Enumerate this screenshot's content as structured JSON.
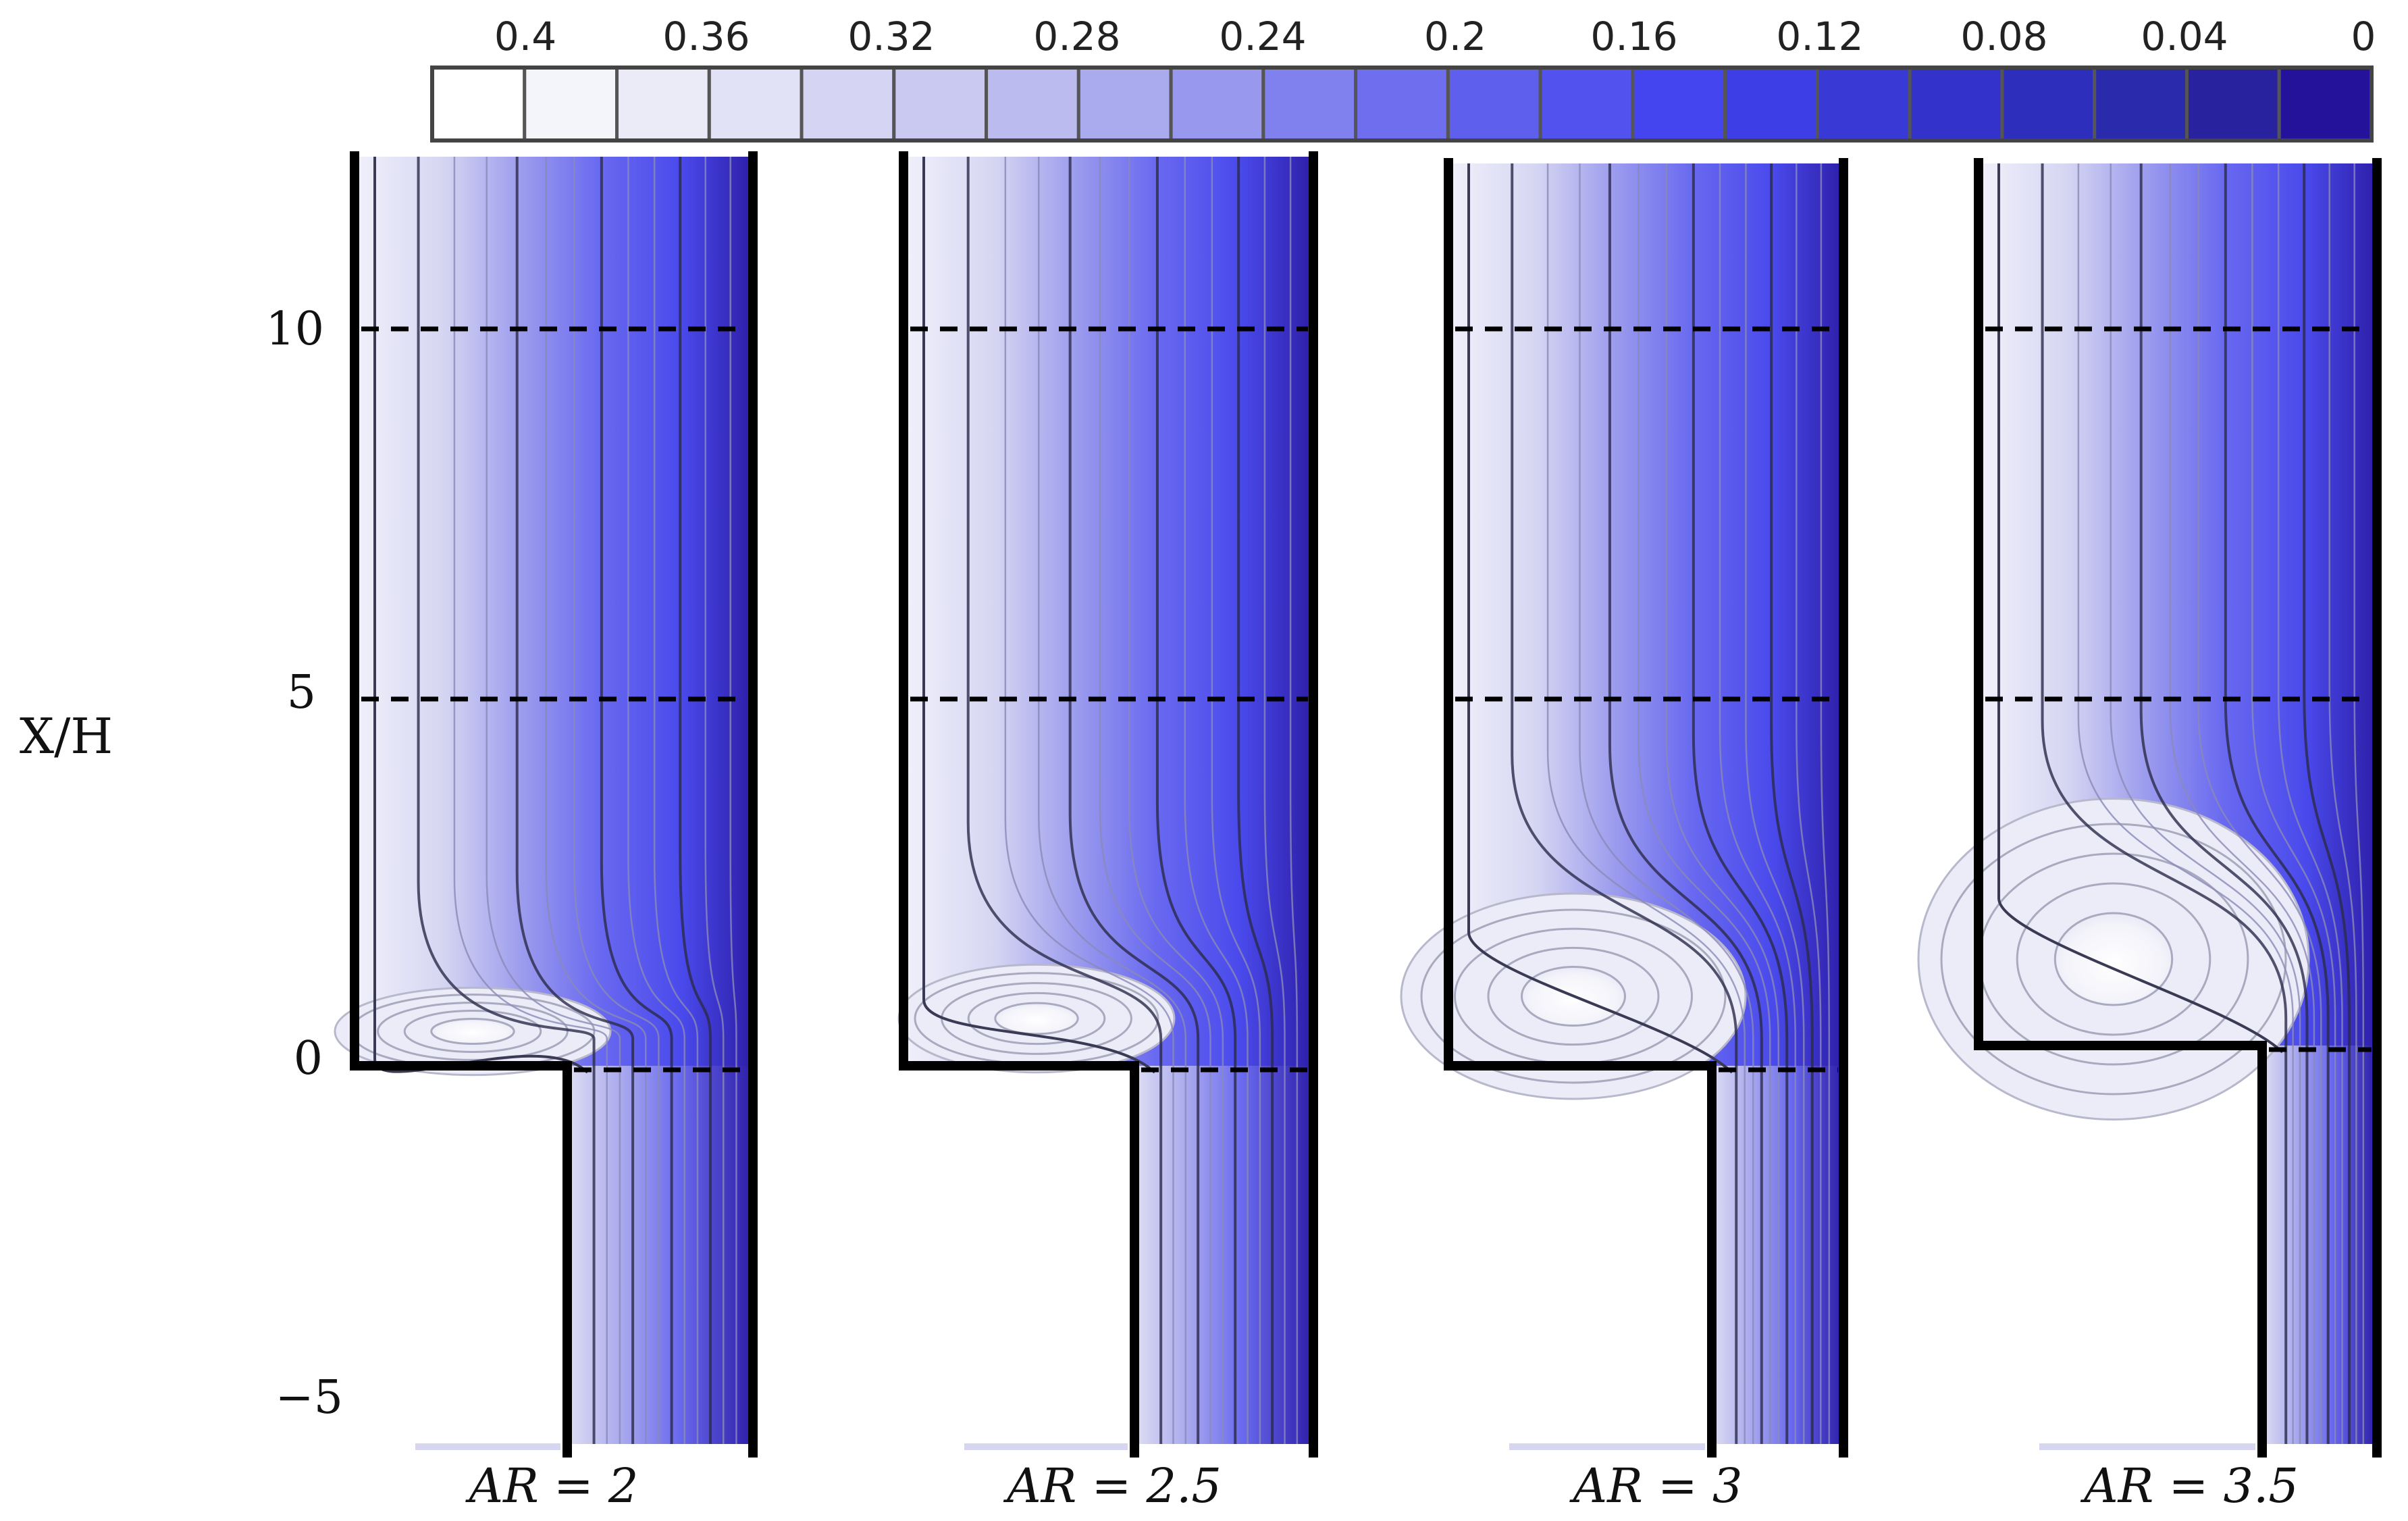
{
  "colorbar": {
    "tick_labels": [
      "0.4",
      "0.36",
      "0.32",
      "0.28",
      "0.24",
      "0.2",
      "0.16",
      "0.12",
      "0.08",
      "0.04",
      "0"
    ],
    "swatches": [
      "#ffffff",
      "#f4f4fb",
      "#ebebf8",
      "#e2e2f6",
      "#d5d5f3",
      "#c9c9f1",
      "#bbbbf0",
      "#aaaaee",
      "#9898ee",
      "#8080ee",
      "#6e6eee",
      "#5f5fee",
      "#5252ef",
      "#4545f0",
      "#3e3ee6",
      "#3939d6",
      "#3333cc",
      "#2e2ebc",
      "#2a2aad",
      "#28229e",
      "#24129a"
    ]
  },
  "y_axis": {
    "label": "X/H",
    "ticks": [
      {
        "value": 10,
        "label": "10"
      },
      {
        "value": 5,
        "label": "5"
      },
      {
        "value": 0,
        "label": "0"
      },
      {
        "value": -5,
        "label": "−5"
      }
    ]
  },
  "panels": [
    {
      "label": "AR = 2",
      "ar": 2
    },
    {
      "label": "AR = 2.5",
      "ar": 2.5
    },
    {
      "label": "AR = 3",
      "ar": 3
    },
    {
      "label": "AR = 3.5",
      "ar": 3.5
    }
  ]
}
